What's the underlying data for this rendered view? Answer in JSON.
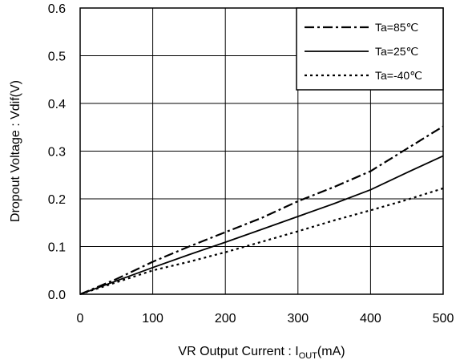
{
  "chart_data": {
    "type": "line",
    "title": "",
    "xlabel": "VR Output Current : I",
    "xlabel_sub": "OUT",
    "xlabel_unit": "(mA)",
    "ylabel": "Dropout Voltage : Vdif(V)",
    "xlim": [
      0,
      500
    ],
    "ylim": [
      0,
      0.6
    ],
    "xticks": [
      "0",
      "100",
      "200",
      "300",
      "400",
      "500"
    ],
    "yticks": [
      "0.0",
      "0.1",
      "0.2",
      "0.3",
      "0.4",
      "0.5",
      "0.6"
    ],
    "grid": true,
    "legend_position": "top-right",
    "series": [
      {
        "name": "Ta=85℃",
        "style": "dash-dot",
        "color": "#000000",
        "x": [
          0,
          50,
          100,
          150,
          200,
          250,
          300,
          350,
          400,
          450,
          500
        ],
        "y": [
          0,
          0.032,
          0.068,
          0.1,
          0.13,
          0.16,
          0.195,
          0.225,
          0.258,
          0.305,
          0.352
        ]
      },
      {
        "name": "Ta=25℃",
        "style": "solid",
        "color": "#000000",
        "x": [
          0,
          50,
          100,
          150,
          200,
          250,
          300,
          350,
          400,
          450,
          500
        ],
        "y": [
          0,
          0.028,
          0.056,
          0.083,
          0.109,
          0.136,
          0.163,
          0.19,
          0.219,
          0.255,
          0.29
        ]
      },
      {
        "name": "Ta=-40℃",
        "style": "dotted",
        "color": "#000000",
        "x": [
          0,
          50,
          100,
          150,
          200,
          250,
          300,
          350,
          400,
          450,
          500
        ],
        "y": [
          0,
          0.025,
          0.05,
          0.068,
          0.088,
          0.11,
          0.132,
          0.155,
          0.176,
          0.198,
          0.222
        ]
      }
    ]
  }
}
